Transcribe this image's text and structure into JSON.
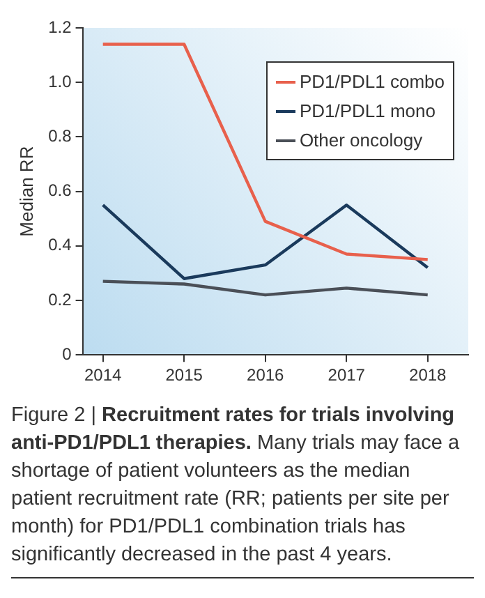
{
  "chart_data": {
    "type": "line",
    "title": "Recruitment rates for trials involving anti-PD1/PDL1 therapies.",
    "subtitle": "Many trials may face a shortage of patient volunteers as the median patient recruitment rate (RR; patients per site per month) for PD1/PDL1 combination trials has significantly decreased in the past 4 years.",
    "annotations": [
      "Figure 2 |"
    ],
    "ylabel": "Median RR",
    "x": [
      2014,
      2015,
      2016,
      2017,
      2018
    ],
    "xlim": [
      2013.75,
      2018.5
    ],
    "xticks": [
      2014,
      2015,
      2016,
      2017,
      2018
    ],
    "ylim": [
      0,
      1.2
    ],
    "yticks": [
      {
        "value": 0,
        "label": "0"
      },
      {
        "value": 0.2,
        "label": "0.2"
      },
      {
        "value": 0.4,
        "label": "0.4"
      },
      {
        "value": 0.6,
        "label": "0.6"
      },
      {
        "value": 0.8,
        "label": "0.8"
      },
      {
        "value": 1,
        "label": "1.0"
      },
      {
        "value": 1.2,
        "label": "1.2"
      }
    ],
    "grid": false,
    "legend": "top right",
    "marker": "none",
    "series": [
      {
        "name": "PD1/PDL1 combo",
        "color": "#e8604c",
        "values": [
          1.14,
          1.14,
          0.49,
          0.37,
          0.35
        ]
      },
      {
        "name": "PD1/PDL1 mono",
        "color": "#1a3a5c",
        "values": [
          0.55,
          0.28,
          0.33,
          0.55,
          0.32
        ]
      },
      {
        "name": "Other oncology",
        "color": "#4a4f57",
        "values": [
          0.27,
          0.26,
          0.22,
          0.245,
          0.22
        ]
      }
    ]
  }
}
